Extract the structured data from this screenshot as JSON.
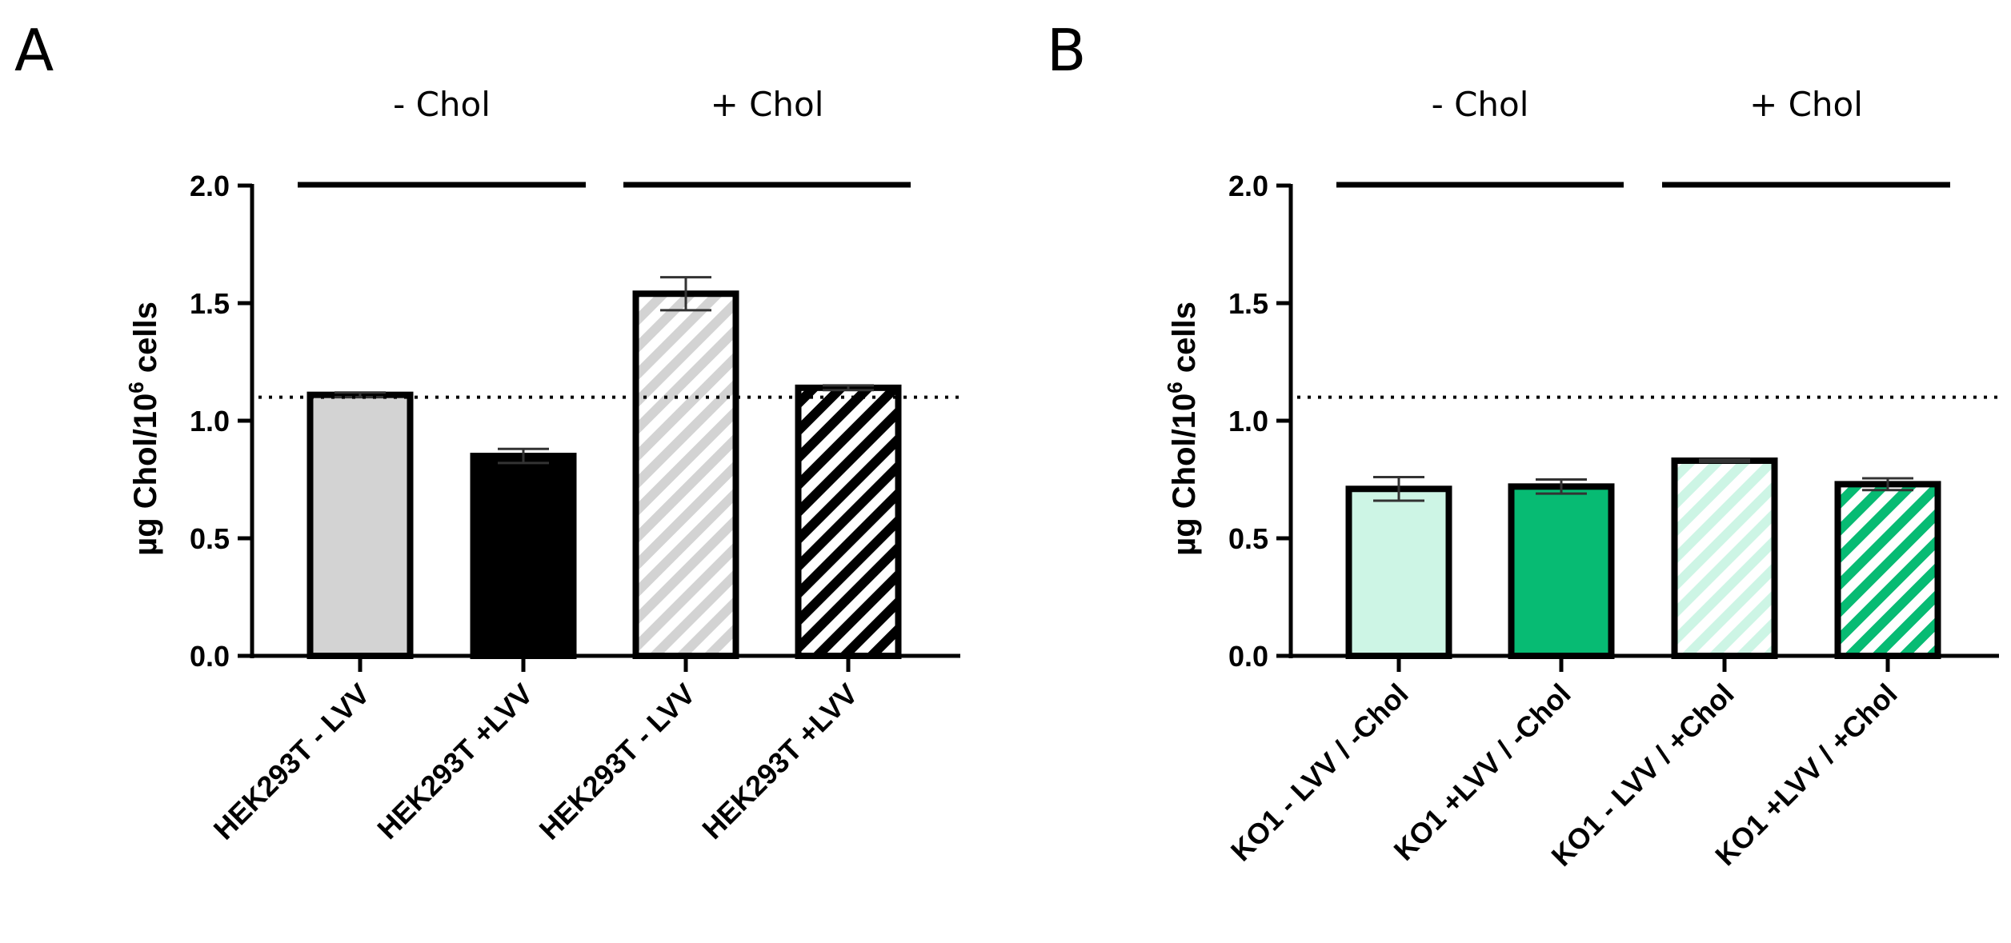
{
  "chart_data": [
    {
      "panel": "A",
      "type": "bar",
      "ylabel": {
        "prefix": "µg Chol/10",
        "sup": "6",
        "suffix": " cells"
      },
      "ylim": [
        0,
        2.0
      ],
      "yticks": [
        "0.0",
        "0.5",
        "1.0",
        "1.5",
        "2.0"
      ],
      "reference_line": 1.1,
      "groups": [
        {
          "label": "- Chol",
          "categories": [
            0,
            1
          ]
        },
        {
          "label": "+ Chol",
          "categories": [
            2,
            3
          ]
        }
      ],
      "categories": [
        "HEK293T - LVV",
        "HEK293T +LVV",
        "HEK293T - LVV",
        "HEK293T +LVV"
      ],
      "values": [
        1.11,
        0.85,
        1.54,
        1.14
      ],
      "errors": [
        0.01,
        0.03,
        0.07,
        0.01
      ],
      "fills": [
        "#d3d3d3",
        "#000000",
        "#d3d3d3",
        "#000000"
      ],
      "hatched": [
        false,
        false,
        true,
        true
      ]
    },
    {
      "panel": "B",
      "type": "bar",
      "ylabel": {
        "prefix": "µg Chol/10",
        "sup": "6",
        "suffix": " cells"
      },
      "ylim": [
        0,
        2.0
      ],
      "yticks": [
        "0.0",
        "0.5",
        "1.0",
        "1.5",
        "2.0"
      ],
      "reference_line": 1.1,
      "groups": [
        {
          "label": "- Chol",
          "categories": [
            0,
            1
          ]
        },
        {
          "label": "+ Chol",
          "categories": [
            2,
            3
          ]
        }
      ],
      "categories": [
        "KO1 - LVV / -Chol",
        "KO1 +LVV / -Chol",
        "KO1 - LVV / +Chol",
        "KO1 +LVV / +Chol"
      ],
      "values": [
        0.71,
        0.72,
        0.83,
        0.73
      ],
      "errors": [
        0.05,
        0.03,
        0.005,
        0.025
      ],
      "fills": [
        "#cdf5e5",
        "#07bb73",
        "#cdf5e5",
        "#07bb73"
      ],
      "hatched": [
        false,
        false,
        true,
        true
      ]
    }
  ]
}
